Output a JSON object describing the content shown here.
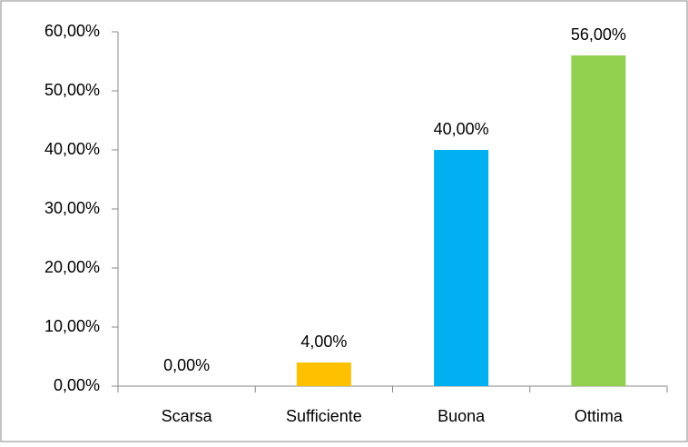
{
  "chart_data": {
    "type": "bar",
    "categories": [
      "Scarsa",
      "Sufficiente",
      "Buona",
      "Ottima"
    ],
    "values": [
      0,
      4,
      40,
      56
    ],
    "value_labels": [
      "0,00%",
      "4,00%",
      "40,00%",
      "56,00%"
    ],
    "colors": [
      "#4f81bd",
      "#ffc000",
      "#00b0f0",
      "#92d050"
    ],
    "ylim": [
      0,
      60
    ],
    "yticks": [
      {
        "value": 0,
        "label": "0,00%"
      },
      {
        "value": 10,
        "label": "10,00%"
      },
      {
        "value": 20,
        "label": "20,00%"
      },
      {
        "value": 30,
        "label": "30,00%"
      },
      {
        "value": 40,
        "label": "40,00%"
      },
      {
        "value": 50,
        "label": "50,00%"
      },
      {
        "value": 60,
        "label": "60,00%"
      }
    ],
    "grid": false
  }
}
